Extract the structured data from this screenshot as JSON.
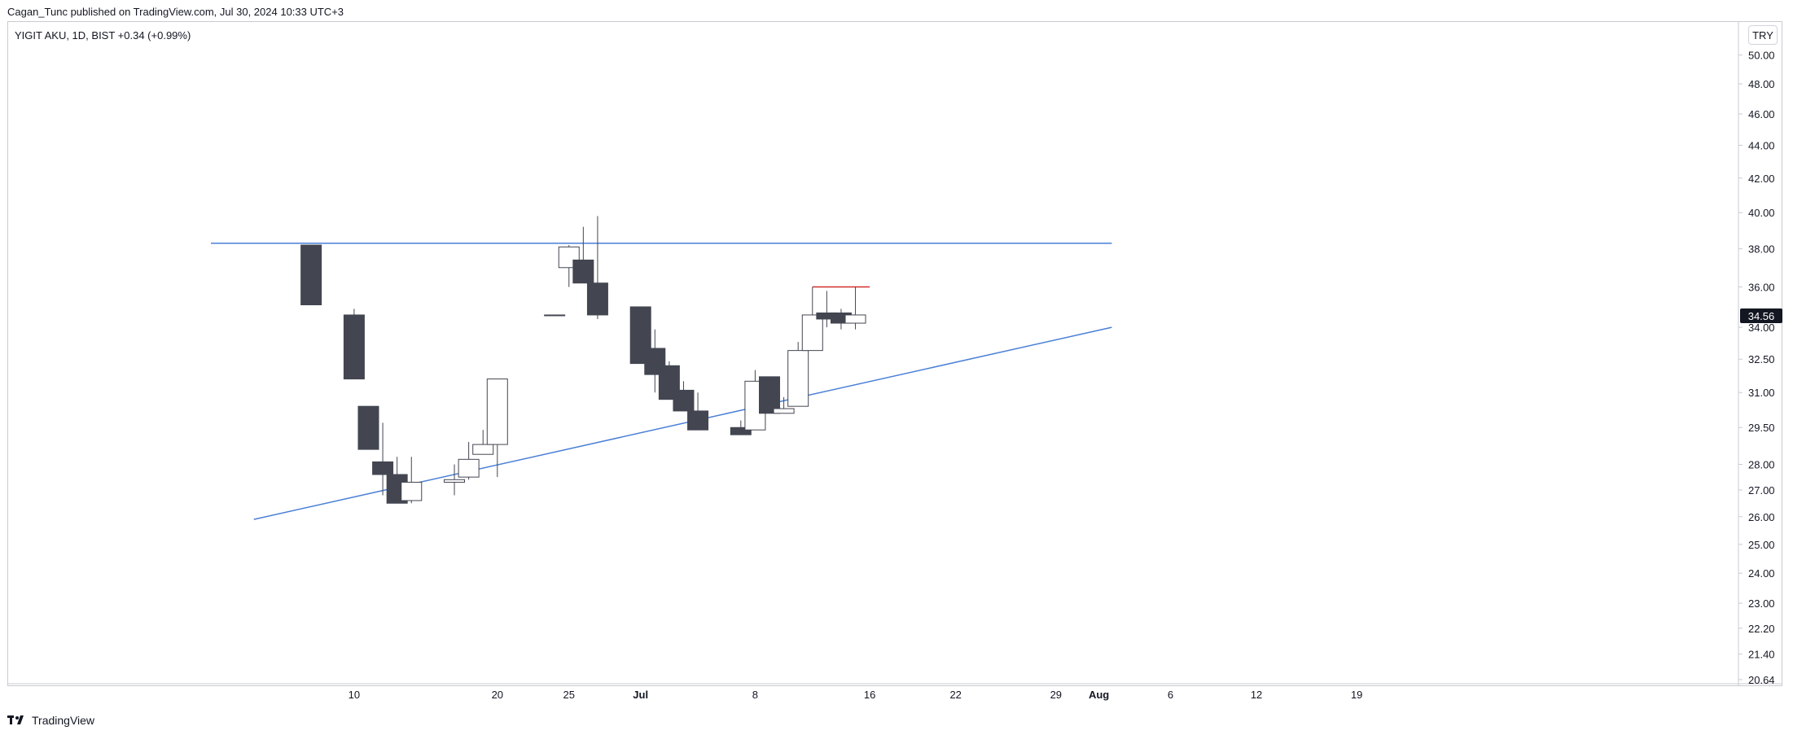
{
  "header": {
    "published_line": "Cagan_Tunc published on TradingView.com, Jul 30, 2024 10:33 UTC+3"
  },
  "symbol": {
    "line": "YIGIT AKU, 1D, BIST  +0.34 (+0.99%)"
  },
  "currency_button": {
    "label": "TRY"
  },
  "footer": {
    "brand": "TradingView"
  },
  "colors": {
    "bear_body": "#434651",
    "bull_body": "#ffffff",
    "candle_outline": "#434651",
    "trendline": "#4a7fd6",
    "resistance_short": "#d32f2f",
    "price_badge_bg": "#131722",
    "price_badge_text": "#ffffff"
  },
  "chart_data": {
    "type": "candlestick",
    "scale": "log",
    "ylim": [
      20.64,
      51.5
    ],
    "y_ticks": [
      "50.00",
      "48.00",
      "46.00",
      "44.00",
      "42.00",
      "40.00",
      "38.00",
      "36.00",
      "34.00",
      "32.50",
      "31.00",
      "29.50",
      "28.00",
      "27.00",
      "26.00",
      "25.00",
      "24.00",
      "23.00",
      "22.20",
      "21.40",
      "20.64"
    ],
    "x_ticks": [
      {
        "label": "10",
        "day": 10
      },
      {
        "label": "20",
        "day": 20
      },
      {
        "label": "25",
        "day": 25
      },
      {
        "label": "Jul",
        "day": 30
      },
      {
        "label": "8",
        "day": 38
      },
      {
        "label": "16",
        "day": 46
      },
      {
        "label": "22",
        "day": 52
      },
      {
        "label": "29",
        "day": 59
      },
      {
        "label": "Aug",
        "day": 62
      },
      {
        "label": "6",
        "day": 67
      },
      {
        "label": "12",
        "day": 73
      },
      {
        "label": "19",
        "day": 80
      }
    ],
    "last_price": "34.56",
    "candles": [
      {
        "day": 7,
        "o": 38.2,
        "h": 38.2,
        "l": 35.1,
        "c": 35.1
      },
      {
        "day": 10,
        "o": 34.6,
        "h": 34.9,
        "l": 31.6,
        "c": 31.6
      },
      {
        "day": 11,
        "o": 30.4,
        "h": 30.4,
        "l": 28.6,
        "c": 28.6
      },
      {
        "day": 12,
        "o": 28.1,
        "h": 29.7,
        "l": 26.8,
        "c": 27.6
      },
      {
        "day": 13,
        "o": 27.6,
        "h": 28.3,
        "l": 26.5,
        "c": 26.5
      },
      {
        "day": 14,
        "o": 26.6,
        "h": 28.3,
        "l": 26.5,
        "c": 27.3
      },
      {
        "day": 17,
        "o": 27.3,
        "h": 28.0,
        "l": 26.8,
        "c": 27.4
      },
      {
        "day": 18,
        "o": 27.5,
        "h": 28.9,
        "l": 27.4,
        "c": 28.2
      },
      {
        "day": 19,
        "o": 28.4,
        "h": 29.4,
        "l": 28.4,
        "c": 28.8
      },
      {
        "day": 20,
        "o": 28.8,
        "h": 31.6,
        "l": 27.5,
        "c": 31.6
      },
      {
        "day": 24,
        "o": 34.6,
        "h": 34.6,
        "l": 34.6,
        "c": 34.6
      },
      {
        "day": 25,
        "o": 37.0,
        "h": 38.2,
        "l": 36.0,
        "c": 38.1
      },
      {
        "day": 26,
        "o": 37.4,
        "h": 39.2,
        "l": 36.2,
        "c": 36.2
      },
      {
        "day": 27,
        "o": 36.2,
        "h": 39.8,
        "l": 34.4,
        "c": 34.6
      },
      {
        "day": 30,
        "o": 35.0,
        "h": 35.0,
        "l": 32.3,
        "c": 32.3
      },
      {
        "day": 31,
        "o": 33.0,
        "h": 33.9,
        "l": 31.0,
        "c": 31.8
      },
      {
        "day": 32,
        "o": 32.2,
        "h": 32.4,
        "l": 30.7,
        "c": 30.7
      },
      {
        "day": 33,
        "o": 31.1,
        "h": 31.5,
        "l": 30.2,
        "c": 30.2
      },
      {
        "day": 34,
        "o": 30.2,
        "h": 31.0,
        "l": 29.4,
        "c": 29.4
      },
      {
        "day": 37,
        "o": 29.5,
        "h": 29.8,
        "l": 29.2,
        "c": 29.2
      },
      {
        "day": 38,
        "o": 29.4,
        "h": 32.0,
        "l": 29.4,
        "c": 31.5
      },
      {
        "day": 39,
        "o": 31.7,
        "h": 31.7,
        "l": 30.1,
        "c": 30.1
      },
      {
        "day": 40,
        "o": 30.1,
        "h": 30.8,
        "l": 30.1,
        "c": 30.3
      },
      {
        "day": 41,
        "o": 30.4,
        "h": 33.3,
        "l": 30.4,
        "c": 32.9
      },
      {
        "day": 42,
        "o": 32.9,
        "h": 36.0,
        "l": 32.9,
        "c": 34.6
      },
      {
        "day": 43,
        "o": 34.7,
        "h": 35.8,
        "l": 34.0,
        "c": 34.4
      },
      {
        "day": 44,
        "o": 34.7,
        "h": 34.9,
        "l": 33.9,
        "c": 34.2
      },
      {
        "day": 45,
        "o": 34.2,
        "h": 36.0,
        "l": 33.9,
        "c": 34.6
      }
    ],
    "drawings": [
      {
        "kind": "trendline",
        "color": "#4a7fd6",
        "from": {
          "day": 0,
          "price": 38.3
        },
        "to": {
          "day": 62.9,
          "price": 38.3
        }
      },
      {
        "kind": "trendline",
        "color": "#4a7fd6",
        "from": {
          "day": 3,
          "price": 25.9
        },
        "to": {
          "day": 62.9,
          "price": 34.0
        }
      },
      {
        "kind": "trendline",
        "color": "#d32f2f",
        "from": {
          "day": 42,
          "price": 36.0
        },
        "to": {
          "day": 46,
          "price": 36.0
        }
      }
    ]
  }
}
